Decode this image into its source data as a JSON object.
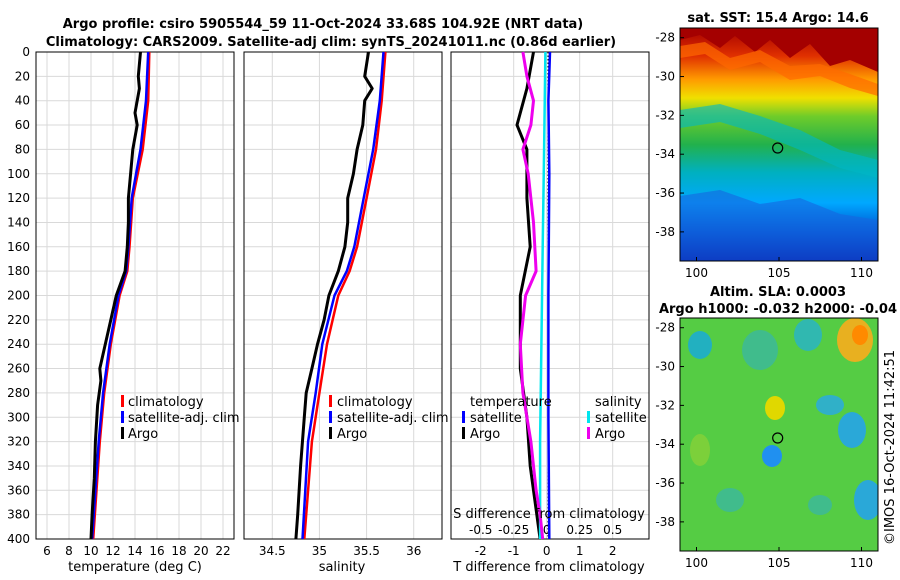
{
  "header": {
    "line1": "Argo profile: csiro 5905544_59 11-Oct-2024 33.68S 104.92E (NRT data)",
    "line2": "Climatology: CARS2009. Satellite-adj clim: synTS_20241011.nc (0.86d earlier)"
  },
  "credit": "©IMOS 16-Oct-2024 11:42:51",
  "colors": {
    "climatology": "#ff0000",
    "satellite": "#0000ff",
    "argo": "#000000",
    "satellite_s": "#00e5ee",
    "argo_s": "#ee00ee"
  },
  "chart_data": [
    {
      "id": "temperature",
      "type": "line",
      "xlabel": "temperature (deg C)",
      "ylabel": "",
      "xlim": [
        5,
        23
      ],
      "ylim": [
        0,
        400
      ],
      "xticks": [
        6,
        8,
        10,
        12,
        14,
        16,
        18,
        20,
        22
      ],
      "yticks": [
        0,
        20,
        40,
        60,
        80,
        100,
        120,
        140,
        160,
        180,
        200,
        220,
        240,
        260,
        280,
        300,
        320,
        340,
        360,
        380,
        400
      ],
      "grid": true,
      "legend": {
        "position": "lower-right",
        "entries": [
          "climatology",
          "satellite-adj. clim",
          "Argo"
        ]
      },
      "series": [
        {
          "name": "climatology",
          "color": "#ff0000",
          "depth": [
            0,
            40,
            80,
            120,
            160,
            180,
            200,
            240,
            280,
            320,
            360,
            400
          ],
          "values": [
            15.3,
            15.2,
            14.7,
            13.8,
            13.5,
            13.3,
            12.6,
            11.8,
            11.2,
            10.8,
            10.5,
            10.2
          ]
        },
        {
          "name": "satellite-adj. clim",
          "color": "#0000ff",
          "depth": [
            0,
            40,
            80,
            120,
            160,
            180,
            200,
            240,
            280,
            320,
            360,
            400
          ],
          "values": [
            15.2,
            15.0,
            14.5,
            13.7,
            13.4,
            13.2,
            12.5,
            11.7,
            11.1,
            10.7,
            10.4,
            10.1
          ]
        },
        {
          "name": "Argo",
          "color": "#000000",
          "depth": [
            0,
            20,
            30,
            50,
            60,
            80,
            100,
            120,
            140,
            160,
            180,
            200,
            220,
            240,
            260,
            270,
            290,
            320,
            350,
            380,
            400
          ],
          "values": [
            14.5,
            14.3,
            14.4,
            14.0,
            14.2,
            13.8,
            13.6,
            13.4,
            13.4,
            13.3,
            13.1,
            12.3,
            11.8,
            11.3,
            10.8,
            10.9,
            10.6,
            10.4,
            10.3,
            10.1,
            10.0
          ]
        }
      ]
    },
    {
      "id": "salinity",
      "type": "line",
      "xlabel": "salinity",
      "xlim": [
        34.2,
        36.3
      ],
      "ylim": [
        0,
        400
      ],
      "xticks": [
        34.5,
        35,
        35.5,
        36
      ],
      "grid": true,
      "legend": {
        "position": "lower-right",
        "entries": [
          "climatology",
          "satellite-adj. clim",
          "Argo"
        ]
      },
      "series": [
        {
          "name": "climatology",
          "color": "#ff0000",
          "depth": [
            0,
            40,
            80,
            120,
            160,
            180,
            200,
            240,
            280,
            320,
            360,
            400
          ],
          "values": [
            35.7,
            35.66,
            35.6,
            35.5,
            35.4,
            35.32,
            35.2,
            35.08,
            35.0,
            34.92,
            34.88,
            34.84
          ]
        },
        {
          "name": "satellite-adj. clim",
          "color": "#0000ff",
          "depth": [
            0,
            40,
            80,
            120,
            160,
            180,
            200,
            240,
            280,
            320,
            360,
            400
          ],
          "values": [
            35.68,
            35.64,
            35.57,
            35.47,
            35.37,
            35.29,
            35.16,
            35.03,
            34.96,
            34.88,
            34.85,
            34.82
          ]
        },
        {
          "name": "Argo",
          "color": "#000000",
          "depth": [
            0,
            20,
            30,
            40,
            60,
            80,
            100,
            120,
            140,
            160,
            180,
            200,
            220,
            240,
            260,
            280,
            300,
            340,
            380,
            400
          ],
          "values": [
            35.52,
            35.48,
            35.56,
            35.48,
            35.46,
            35.4,
            35.36,
            35.3,
            35.3,
            35.27,
            35.2,
            35.1,
            35.05,
            34.98,
            34.92,
            34.86,
            34.84,
            34.8,
            34.77,
            34.75
          ]
        }
      ]
    },
    {
      "id": "differences",
      "type": "line",
      "xlabel": "T difference from climatology",
      "x2label": "S difference from climatology",
      "xlim": [
        -2.9,
        3.1
      ],
      "x2lim": [
        -0.725,
        0.775
      ],
      "ylim": [
        0,
        400
      ],
      "xticks": [
        -2,
        -1,
        0,
        1,
        2
      ],
      "x2ticks": [
        -0.5,
        -0.25,
        0,
        0.25,
        0.5
      ],
      "x2ticklabels": [
        "-0.5",
        "-0.25",
        "0",
        "0.25",
        "0.5"
      ],
      "grid": true,
      "legend": {
        "position": "lower",
        "temperature_title": "temperature",
        "salinity_title": "salinity",
        "entries": [
          "satellite",
          "Argo",
          "satellite",
          "Argo"
        ]
      },
      "series": [
        {
          "name": "satellite (temperature)",
          "axis": "T",
          "color": "#0000ff",
          "depth": [
            0,
            40,
            100,
            200,
            300,
            400
          ],
          "values": [
            0.1,
            0.05,
            0.08,
            0.05,
            0.05,
            0.08
          ]
        },
        {
          "name": "Argo (temperature)",
          "axis": "T",
          "color": "#000000",
          "depth": [
            0,
            30,
            60,
            80,
            120,
            160,
            200,
            260,
            300,
            340,
            380,
            400
          ],
          "values": [
            -0.4,
            -0.6,
            -0.9,
            -0.6,
            -0.6,
            -0.5,
            -0.8,
            -0.8,
            -0.6,
            -0.5,
            -0.3,
            -0.2
          ]
        },
        {
          "name": "satellite (salinity)",
          "axis": "S",
          "color": "#00e5ee",
          "depth": [
            0,
            80,
            160,
            240,
            320,
            400
          ],
          "values": [
            -0.01,
            -0.02,
            -0.03,
            -0.04,
            -0.05,
            -0.05
          ]
        },
        {
          "name": "Argo (salinity)",
          "axis": "S",
          "color": "#ee00ee",
          "depth": [
            0,
            20,
            40,
            60,
            80,
            100,
            140,
            180,
            200,
            240,
            280,
            320,
            360,
            380,
            400
          ],
          "values": [
            -0.18,
            -0.15,
            -0.1,
            -0.12,
            -0.18,
            -0.14,
            -0.1,
            -0.08,
            -0.16,
            -0.2,
            -0.18,
            -0.12,
            -0.08,
            -0.05,
            -0.03
          ]
        }
      ]
    },
    {
      "id": "sst_map",
      "type": "heatmap",
      "title": "sat. SST: 15.4 Argo: 14.6",
      "xlim": [
        99,
        111
      ],
      "ylim": [
        -39.5,
        -27.5
      ],
      "xticks": [
        100,
        105,
        110
      ],
      "yticks": [
        -28,
        -30,
        -32,
        -34,
        -36,
        -38
      ],
      "marker": {
        "lon": 104.92,
        "lat": -33.68
      }
    },
    {
      "id": "sla_map",
      "type": "heatmap",
      "title_line1": "Altim. SLA: 0.0003",
      "title_line2": "Argo h1000: -0.032 h2000: -0.04",
      "xlim": [
        99,
        111
      ],
      "ylim": [
        -39.5,
        -27.5
      ],
      "xticks": [
        100,
        105,
        110
      ],
      "yticks": [
        -28,
        -30,
        -32,
        -34,
        -36,
        -38
      ],
      "marker": {
        "lon": 104.92,
        "lat": -33.68
      }
    }
  ]
}
